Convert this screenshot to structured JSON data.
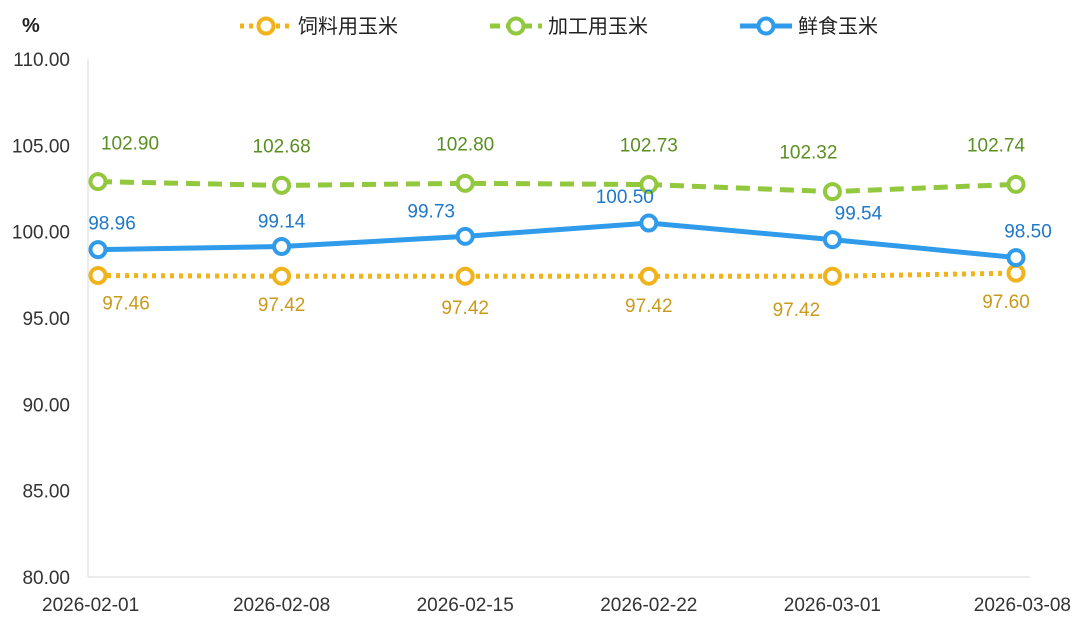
{
  "chart_data": {
    "type": "line",
    "unit_label": "%",
    "x": [
      "2026-02-01",
      "2026-02-08",
      "2026-02-15",
      "2026-02-22",
      "2026-03-01",
      "2026-03-08"
    ],
    "ylim": [
      80,
      110
    ],
    "yticks": [
      "80.00",
      "85.00",
      "90.00",
      "95.00",
      "100.00",
      "105.00",
      "110.00"
    ],
    "grid": false,
    "legend_position": "top",
    "series": [
      {
        "name": "饲料用玉米",
        "values": [
          97.46,
          97.42,
          97.42,
          97.42,
          97.42,
          97.6
        ],
        "labels": [
          "97.46",
          "97.42",
          "97.42",
          "97.42",
          "97.42",
          "97.60"
        ],
        "color": "#F0B31C",
        "label_color": "#C99A1B",
        "line_style": "dotted",
        "label_position": "below"
      },
      {
        "name": "加工用玉米",
        "values": [
          102.9,
          102.68,
          102.8,
          102.73,
          102.32,
          102.74
        ],
        "labels": [
          "102.90",
          "102.68",
          "102.80",
          "102.73",
          "102.32",
          "102.74"
        ],
        "color": "#92C83E",
        "label_color": "#5A8F22",
        "line_style": "dashed",
        "label_position": "above"
      },
      {
        "name": "鲜食玉米",
        "values": [
          98.96,
          99.14,
          99.73,
          100.5,
          99.54,
          98.5
        ],
        "labels": [
          "98.96",
          "99.14",
          "99.73",
          "100.50",
          "99.54",
          "98.50"
        ],
        "color": "#2F9BEA",
        "label_color": "#1F78C8",
        "line_style": "solid",
        "label_position": "above"
      }
    ]
  }
}
